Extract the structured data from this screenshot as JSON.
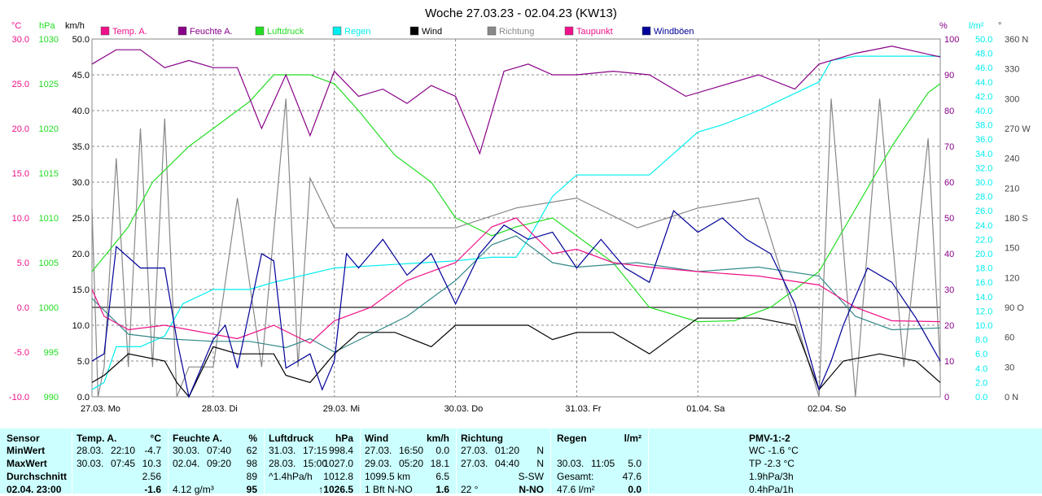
{
  "title": "Woche 27.03.23 - 02.04.23 (KW13)",
  "colors": {
    "temp": "#ee1188",
    "hum": "#880088",
    "press": "#22dd22",
    "rain": "#00eeee",
    "wind": "#000000",
    "dir": "#888888",
    "dew": "#338888",
    "gust": "#000099",
    "grid": "#888888",
    "bg": "#ffffff",
    "table_bg": "#ccffff"
  },
  "legend": [
    {
      "label": "Temp. A.",
      "color": "#ee1188"
    },
    {
      "label": "Feuchte A.",
      "color": "#880088"
    },
    {
      "label": "Luftdruck",
      "color": "#22dd22"
    },
    {
      "label": "Regen",
      "color": "#00eeee"
    },
    {
      "label": "Wind",
      "color": "#000000"
    },
    {
      "label": "Richtung",
      "color": "#888888"
    },
    {
      "label": "Taupunkt",
      "color": "#ee1188"
    },
    {
      "label": "Windböen",
      "color": "#000099"
    }
  ],
  "axes": {
    "units": {
      "temp": "°C",
      "press": "hPa",
      "wind": "km/h",
      "hum": "%",
      "rain": "l/m²",
      "dir": "°"
    },
    "temp_ticks": [
      "30.0",
      "25.0",
      "20.0",
      "15.0",
      "10.0",
      "5.0",
      "0.0",
      "-5.0",
      "-10.0"
    ],
    "press_ticks": [
      "1030",
      "1025",
      "1020",
      "1015",
      "1010",
      "1005",
      "1000",
      "995",
      "990"
    ],
    "wind_ticks": [
      "50.0",
      "45.0",
      "40.0",
      "35.0",
      "30.0",
      "25.0",
      "20.0",
      "15.0",
      "10.0",
      "5.0",
      "0.0"
    ],
    "hum_ticks": [
      "100",
      "90",
      "80",
      "70",
      "60",
      "50",
      "40",
      "30",
      "20",
      "10",
      "0"
    ],
    "rain_ticks": [
      "50.0",
      "48.0",
      "46.0",
      "44.0",
      "42.0",
      "40.0",
      "38.0",
      "36.0",
      "34.0",
      "32.0",
      "30.0",
      "28.0",
      "26.0",
      "24.0",
      "22.0",
      "20.0",
      "18.0",
      "16.0",
      "14.0",
      "12.0",
      "10.0",
      "8.0",
      "6.0",
      "4.0",
      "2.0",
      "0.0"
    ],
    "dir_ticks": [
      "360 N",
      "330",
      "300",
      "270 W",
      "240",
      "210",
      "180 S",
      "150",
      "120",
      "90 O",
      "60",
      "30",
      "0 N"
    ],
    "day_labels": [
      "27.03.  Mo",
      "28.03.  Di",
      "29.03.  Mi",
      "30.03.  Do",
      "31.03.  Fr",
      "01.04.  Sa",
      "02.04.  So"
    ]
  },
  "chart_data": {
    "type": "line",
    "title": "Woche 27.03.23 - 02.04.23 (KW13)",
    "x_unit": "days since 27.03. 00:00",
    "series": [
      {
        "name": "Temp. A.",
        "unit": "°C",
        "axis": "temp",
        "x": [
          0,
          0.1,
          0.3,
          0.6,
          1.0,
          1.2,
          1.5,
          1.8,
          2.0,
          2.3,
          2.6,
          3.0,
          3.3,
          3.5,
          3.8,
          4.0,
          4.3,
          4.6,
          5.0,
          5.5,
          6.0,
          6.3,
          6.6,
          7.0
        ],
        "y": [
          2,
          -1,
          -2.5,
          -2,
          -3,
          -3.5,
          -2,
          -4,
          -1.5,
          0,
          3,
          5,
          9,
          10,
          6,
          6.5,
          5,
          4.5,
          4,
          3.5,
          2.5,
          0,
          -1.5,
          -1.6
        ]
      },
      {
        "name": "Feuchte A.",
        "unit": "%",
        "axis": "hum",
        "x": [
          0,
          0.2,
          0.4,
          0.6,
          0.8,
          1.0,
          1.2,
          1.4,
          1.6,
          1.8,
          2.0,
          2.2,
          2.4,
          2.6,
          2.8,
          3.0,
          3.2,
          3.4,
          3.6,
          3.8,
          4.0,
          4.3,
          4.6,
          4.9,
          5.2,
          5.5,
          5.8,
          6.0,
          6.3,
          6.6,
          7.0
        ],
        "y": [
          93,
          97,
          97,
          92,
          94,
          92,
          92,
          75,
          90,
          73,
          91,
          84,
          86,
          82,
          87,
          84,
          68,
          91,
          93,
          90,
          90,
          91,
          90,
          84,
          87,
          90,
          86,
          93,
          96,
          98,
          95
        ]
      },
      {
        "name": "Luftdruck",
        "unit": "hPa",
        "axis": "press",
        "x": [
          0,
          0.3,
          0.5,
          0.8,
          1.0,
          1.3,
          1.5,
          1.8,
          2.0,
          2.2,
          2.5,
          2.8,
          3.0,
          3.3,
          3.5,
          3.8,
          4.0,
          4.3,
          4.6,
          5.0,
          5.3,
          5.6,
          5.8,
          6.0,
          6.3,
          6.6,
          6.9,
          7.0
        ],
        "y": [
          1004,
          1009,
          1014,
          1018,
          1020,
          1023,
          1026,
          1026,
          1025,
          1022,
          1017,
          1014,
          1010,
          1008,
          1009,
          1010,
          1008,
          1005,
          1000,
          998.4,
          998.5,
          1000,
          1002,
          1004,
          1011,
          1018,
          1024,
          1025
        ]
      },
      {
        "name": "Regen",
        "unit": "l/m²",
        "axis": "rain",
        "x": [
          0,
          0.1,
          0.2,
          0.4,
          0.6,
          0.75,
          1.0,
          1.3,
          1.5,
          2.0,
          2.5,
          3.0,
          3.3,
          3.5,
          3.6,
          3.8,
          4.0,
          4.3,
          4.6,
          4.8,
          5.0,
          5.2,
          5.5,
          6.0,
          6.1,
          6.3,
          6.5,
          7.0
        ],
        "y": [
          1,
          2,
          7,
          7,
          8.5,
          13,
          15,
          15,
          16,
          18,
          18.5,
          19,
          19.5,
          19.5,
          22,
          28,
          31,
          31,
          31,
          34,
          37,
          38,
          40,
          44,
          47,
          47.6,
          47.6,
          47.6
        ]
      },
      {
        "name": "Wind",
        "unit": "km/h",
        "axis": "wind",
        "x": [
          0,
          0.1,
          0.3,
          0.6,
          0.7,
          0.8,
          1.0,
          1.2,
          1.5,
          1.6,
          1.8,
          2.0,
          2.2,
          2.5,
          2.8,
          3.0,
          3.3,
          3.6,
          3.8,
          4.0,
          4.3,
          4.6,
          5.0,
          5.5,
          5.8,
          6.0,
          6.2,
          6.5,
          6.8,
          7.0
        ],
        "y": [
          2,
          3,
          6,
          5,
          2,
          0,
          7,
          6,
          6,
          3,
          2,
          6,
          9,
          9,
          7,
          10,
          10,
          10,
          8,
          9,
          9,
          6,
          11,
          11,
          10,
          1,
          5,
          6,
          5,
          2
        ]
      },
      {
        "name": "Richtung",
        "unit": "°",
        "axis": "dir",
        "x": [
          0,
          0.05,
          0.1,
          0.2,
          0.3,
          0.4,
          0.5,
          0.6,
          0.7,
          0.8,
          1.0,
          1.2,
          1.4,
          1.6,
          1.7,
          1.8,
          2.0,
          2.5,
          3.0,
          3.5,
          4.0,
          4.5,
          5.0,
          5.5,
          6.0,
          6.1,
          6.3,
          6.5,
          6.7,
          6.9,
          7.0
        ],
        "y": [
          190,
          0,
          30,
          240,
          30,
          270,
          30,
          280,
          0,
          30,
          30,
          200,
          30,
          300,
          30,
          220,
          170,
          170,
          170,
          190,
          200,
          170,
          190,
          200,
          0,
          300,
          0,
          300,
          30,
          260,
          30
        ]
      },
      {
        "name": "Taupunkt",
        "unit": "°C",
        "axis": "temp",
        "x": [
          0,
          0.3,
          0.6,
          1.0,
          1.3,
          1.6,
          1.8,
          2.0,
          2.3,
          2.6,
          3.0,
          3.3,
          3.5,
          3.8,
          4.0,
          4.5,
          5.0,
          5.5,
          6.0,
          6.3,
          6.6,
          7.0
        ],
        "y": [
          1,
          -3,
          -3.5,
          -3.8,
          -3.8,
          -4.5,
          -3.5,
          -5,
          -3,
          -1,
          3,
          7,
          8,
          5,
          4.5,
          5,
          4,
          4.5,
          3.5,
          -1,
          -2.5,
          -2.3
        ]
      },
      {
        "name": "Windböen",
        "unit": "km/h",
        "axis": "wind",
        "x": [
          0,
          0.1,
          0.2,
          0.4,
          0.6,
          0.7,
          0.8,
          1.0,
          1.1,
          1.2,
          1.4,
          1.5,
          1.6,
          1.8,
          1.9,
          2.0,
          2.1,
          2.2,
          2.4,
          2.6,
          2.8,
          3.0,
          3.2,
          3.4,
          3.6,
          3.8,
          4.0,
          4.2,
          4.4,
          4.6,
          4.8,
          5.0,
          5.2,
          5.4,
          5.6,
          5.8,
          6.0,
          6.1,
          6.2,
          6.4,
          6.6,
          6.8,
          7.0
        ],
        "y": [
          5,
          6,
          21,
          18,
          18,
          8,
          0,
          8,
          10,
          4,
          20,
          19,
          4,
          6,
          1,
          5,
          20,
          18,
          22,
          17,
          20,
          13,
          20,
          24,
          22,
          23,
          18,
          22,
          18,
          16,
          26,
          23,
          25,
          22,
          20,
          13,
          1,
          5,
          10,
          18,
          16,
          11,
          5
        ]
      }
    ]
  },
  "stats": {
    "columns": [
      {
        "title": "Sensor",
        "unit": ""
      },
      {
        "title": "Temp. A.",
        "unit": "°C"
      },
      {
        "title": "Feuchte A.",
        "unit": "%"
      },
      {
        "title": "Luftdruck",
        "unit": "hPa"
      },
      {
        "title": "Wind",
        "unit": "km/h"
      },
      {
        "title": "Richtung",
        "unit": ""
      },
      {
        "title": "Regen",
        "unit": "l/m²"
      },
      {
        "title": "PMV-1:-2",
        "unit": ""
      }
    ],
    "rows": [
      {
        "label": "MinWert",
        "temp": [
          "28.03.",
          "22:10",
          "-4.7"
        ],
        "hum": [
          "30.03.",
          "07:40",
          "62"
        ],
        "press": [
          "31.03.",
          "17:15",
          "998.4"
        ],
        "wind": [
          "27.03.",
          "16:50",
          "0.0"
        ],
        "dir": [
          "27.03.",
          "01:20",
          "N"
        ],
        "rain": [
          "",
          "",
          ""
        ],
        "pmv": "WC -1.6 °C"
      },
      {
        "label": "MaxWert",
        "temp": [
          "30.03.",
          "07:45",
          "10.3"
        ],
        "hum": [
          "02.04.",
          "09:20",
          "98"
        ],
        "press": [
          "28.03.",
          "15:00",
          "1027.0"
        ],
        "wind": [
          "29.03.",
          "05:20",
          "18.1"
        ],
        "dir": [
          "27.03.",
          "04:40",
          "N"
        ],
        "rain": [
          "30.03.",
          "11:05",
          "5.0"
        ],
        "pmv": "TP -2.3 °C"
      },
      {
        "label": "Durchschnitt",
        "temp": [
          "",
          "",
          "2.56"
        ],
        "hum": [
          "",
          "",
          "89"
        ],
        "press": [
          "^1.4hPa/h",
          "",
          "1012.8"
        ],
        "wind": [
          "1099.5 km",
          "",
          "6.5"
        ],
        "dir": [
          "",
          "",
          "S-SW"
        ],
        "rain": [
          "Gesamt:",
          "",
          "47.6"
        ],
        "pmv": "1.9hPa/3h"
      },
      {
        "label": "02.04. 23:00",
        "temp": [
          "",
          "",
          "-1.6"
        ],
        "hum": [
          "4.12 g/m³",
          "",
          "95"
        ],
        "press": [
          "",
          "",
          "↑1026.5"
        ],
        "wind": [
          "1 Bft N-NO",
          "",
          "1.6"
        ],
        "dir": [
          "22 °",
          "",
          "N-NO"
        ],
        "rain": [
          "47.6 l/m²",
          "",
          "0.0"
        ],
        "pmv": "0.4hPa/1h"
      }
    ]
  }
}
